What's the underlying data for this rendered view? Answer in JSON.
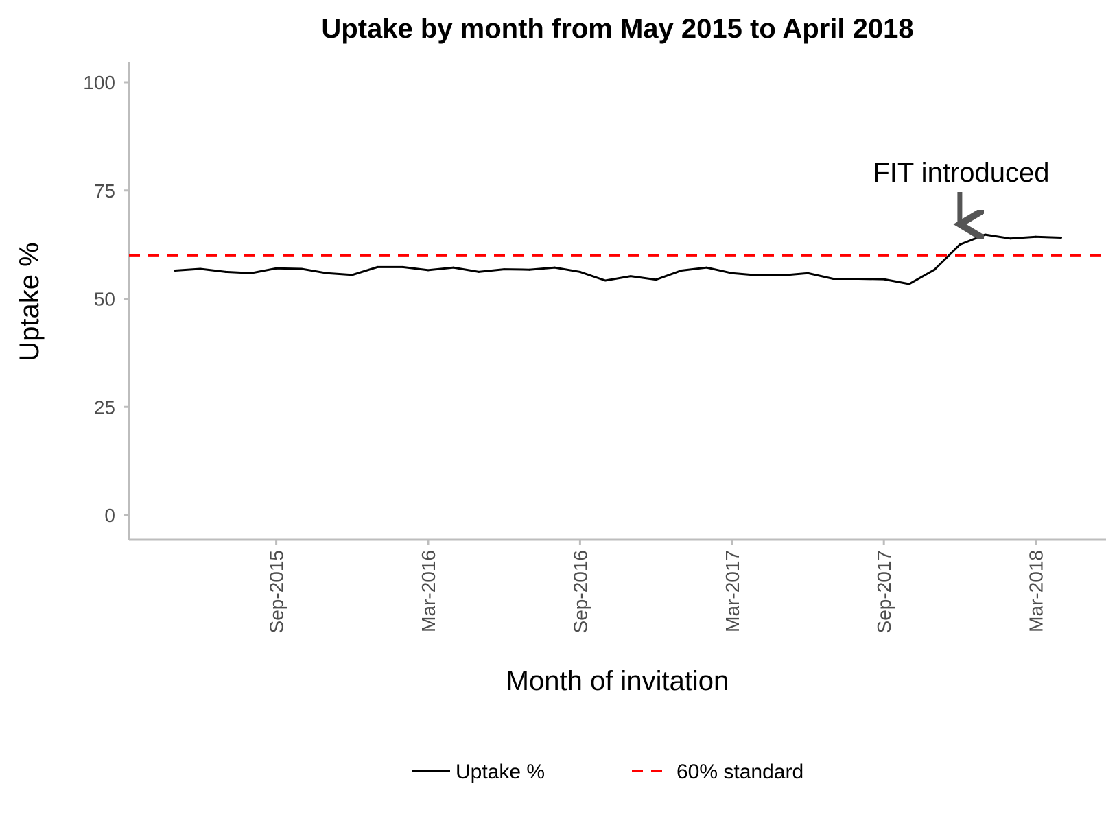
{
  "chart_data": {
    "type": "line",
    "title": "Uptake by month from May 2015 to April 2018",
    "xlabel": "Month of invitation",
    "ylabel": "Uptake %",
    "ylim": [
      0,
      100
    ],
    "y_ticks": [
      0,
      25,
      50,
      75,
      100
    ],
    "x_ticks": [
      "Sep-2015",
      "Mar-2016",
      "Sep-2016",
      "Mar-2017",
      "Sep-2017",
      "Mar-2018"
    ],
    "x": [
      "May-2015",
      "Jun-2015",
      "Jul-2015",
      "Aug-2015",
      "Sep-2015",
      "Oct-2015",
      "Nov-2015",
      "Dec-2015",
      "Jan-2016",
      "Feb-2016",
      "Mar-2016",
      "Apr-2016",
      "May-2016",
      "Jun-2016",
      "Jul-2016",
      "Aug-2016",
      "Sep-2016",
      "Oct-2016",
      "Nov-2016",
      "Dec-2016",
      "Jan-2017",
      "Feb-2017",
      "Mar-2017",
      "Apr-2017",
      "May-2017",
      "Jun-2017",
      "Jul-2017",
      "Aug-2017",
      "Sep-2017",
      "Oct-2017",
      "Nov-2017",
      "Dec-2017",
      "Jan-2018",
      "Feb-2018",
      "Mar-2018",
      "Apr-2018"
    ],
    "series": [
      {
        "name": "Uptake %",
        "color": "#000000",
        "style": "solid",
        "values": [
          56.5,
          56.9,
          56.2,
          55.9,
          57.0,
          56.9,
          55.9,
          55.5,
          57.3,
          57.3,
          56.6,
          57.2,
          56.2,
          56.8,
          56.7,
          57.2,
          56.2,
          54.2,
          55.2,
          54.4,
          56.5,
          57.2,
          55.9,
          55.4,
          55.4,
          55.9,
          54.6,
          54.6,
          54.5,
          53.4,
          56.7,
          62.5,
          64.8,
          63.9,
          64.3,
          64.1
        ]
      }
    ],
    "reference_line": {
      "name": "60% standard",
      "value": 60,
      "color": "#ff0000",
      "style": "dashed"
    },
    "annotation": {
      "text": "FIT introduced",
      "at": "Dec-2017",
      "color": "#555555"
    },
    "legend": {
      "position": "bottom"
    },
    "grid": false
  }
}
